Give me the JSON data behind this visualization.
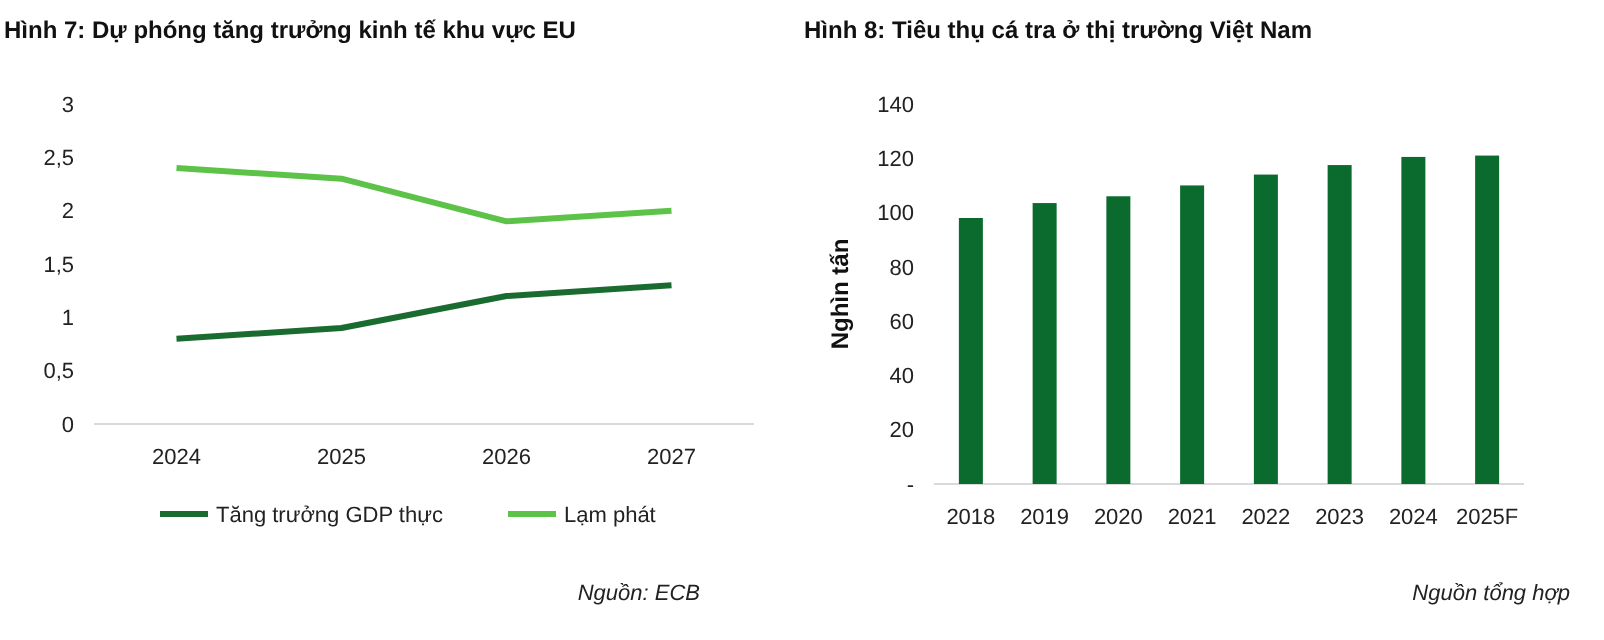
{
  "chart_data": [
    {
      "type": "line",
      "title": "Hình 7: Dự phóng tăng trưởng kinh tế khu vực EU",
      "categories": [
        "2024",
        "2025",
        "2026",
        "2027"
      ],
      "series": [
        {
          "name": "Tăng trưởng GDP thực",
          "color": "#1a6b30",
          "values": [
            0.8,
            0.9,
            1.2,
            1.3
          ]
        },
        {
          "name": "Lạm phát",
          "color": "#5cc348",
          "values": [
            2.4,
            2.3,
            1.9,
            2.0
          ]
        }
      ],
      "ylim": [
        0,
        3
      ],
      "yticks": [
        0,
        {
          "value": 0.5,
          "label": "0,5"
        },
        1,
        {
          "value": 1.5,
          "label": "1,5"
        },
        2,
        {
          "value": 2.5,
          "label": "2,5"
        },
        3
      ],
      "legend": "bottom",
      "marker": "none",
      "line_style": "solid",
      "annotations": [
        "Nguồn: ECB"
      ]
    },
    {
      "type": "bar",
      "title": "Hình 8: Tiêu thụ cá tra ở thị trường Việt Nam",
      "ylabel": "Nghìn tấn",
      "categories": [
        "2018",
        "2019",
        "2020",
        "2021",
        "2022",
        "2023",
        "2024",
        "2025F"
      ],
      "values": [
        98,
        103.5,
        106,
        110,
        114,
        117.5,
        120.5,
        121
      ],
      "color": "#0b6b2e",
      "ylim": [
        0,
        140
      ],
      "yticks": [
        {
          "value": 0,
          "label": "-"
        },
        20,
        40,
        60,
        80,
        100,
        120,
        140
      ],
      "annotations": [
        "Nguồn tổng hợp"
      ]
    }
  ]
}
